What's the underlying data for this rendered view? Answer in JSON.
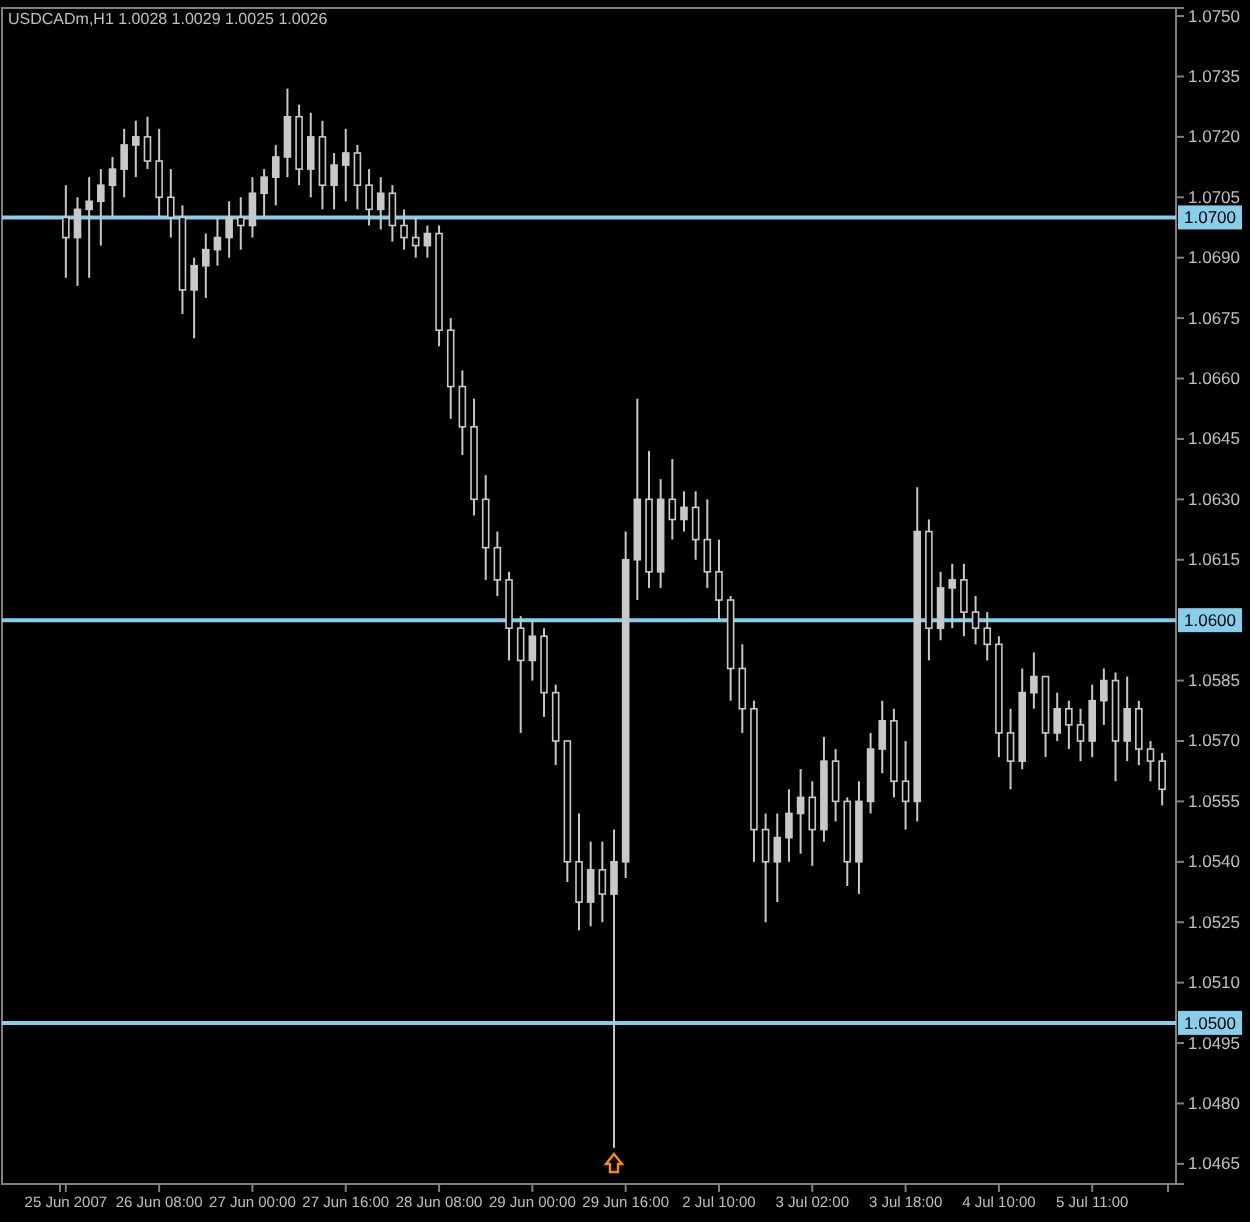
{
  "chart_data": {
    "type": "candlestick",
    "title": "USDCADm,H1  1.0028 1.0029 1.0025 1.0026",
    "categories": [
      "25 Jun 2007",
      null,
      null,
      null,
      null,
      null,
      null,
      null,
      "26 Jun 08:00",
      null,
      null,
      null,
      null,
      null,
      null,
      null,
      "27 Jun 00:00",
      null,
      null,
      null,
      null,
      null,
      null,
      null,
      "27 Jun 16:00",
      null,
      null,
      null,
      null,
      null,
      null,
      null,
      "28 Jun 08:00",
      null,
      null,
      null,
      null,
      null,
      null,
      null,
      "29 Jun 00:00",
      null,
      null,
      null,
      null,
      null,
      null,
      null,
      "29 Jun 16:00",
      null,
      null,
      null,
      null,
      null,
      null,
      null,
      "2 Jul 10:00",
      null,
      null,
      null,
      null,
      null,
      null,
      null,
      "3 Jul 02:00",
      null,
      null,
      null,
      null,
      null,
      null,
      null,
      "3 Jul 18:00",
      null,
      null,
      null,
      null,
      null,
      null,
      null,
      "4 Jul 10:00",
      null,
      null,
      null,
      null,
      null,
      null,
      null,
      "5 Jul 11:00",
      null,
      null,
      null,
      null,
      null,
      null
    ],
    "ohlc": [
      [
        1.07,
        1.0708,
        1.0685,
        1.0695
      ],
      [
        1.0695,
        1.0705,
        1.0683,
        1.0702
      ],
      [
        1.0702,
        1.071,
        1.0685,
        1.0704
      ],
      [
        1.0704,
        1.0712,
        1.0693,
        1.0708
      ],
      [
        1.0708,
        1.0715,
        1.07,
        1.0712
      ],
      [
        1.0712,
        1.0722,
        1.0705,
        1.0718
      ],
      [
        1.0718,
        1.0724,
        1.071,
        1.072
      ],
      [
        1.072,
        1.0725,
        1.0712,
        1.0714
      ],
      [
        1.0714,
        1.0722,
        1.07,
        1.0705
      ],
      [
        1.0705,
        1.0712,
        1.0695,
        1.07
      ],
      [
        1.07,
        1.0703,
        1.0676,
        1.0682
      ],
      [
        1.0682,
        1.069,
        1.067,
        1.0688
      ],
      [
        1.0688,
        1.0696,
        1.068,
        1.0692
      ],
      [
        1.0692,
        1.07,
        1.0688,
        1.0695
      ],
      [
        1.0695,
        1.0704,
        1.069,
        1.07
      ],
      [
        1.07,
        1.0705,
        1.0692,
        1.0698
      ],
      [
        1.0698,
        1.071,
        1.0695,
        1.0706
      ],
      [
        1.0706,
        1.0712,
        1.07,
        1.071
      ],
      [
        1.071,
        1.0718,
        1.0703,
        1.0715
      ],
      [
        1.0715,
        1.0732,
        1.071,
        1.0725
      ],
      [
        1.0725,
        1.0728,
        1.0708,
        1.0712
      ],
      [
        1.0712,
        1.0726,
        1.0705,
        1.072
      ],
      [
        1.072,
        1.0724,
        1.0702,
        1.0708
      ],
      [
        1.0708,
        1.0716,
        1.0702,
        1.0713
      ],
      [
        1.0713,
        1.0722,
        1.0704,
        1.0716
      ],
      [
        1.0716,
        1.0718,
        1.0702,
        1.0708
      ],
      [
        1.0708,
        1.0712,
        1.0698,
        1.0702
      ],
      [
        1.0702,
        1.071,
        1.0697,
        1.0706
      ],
      [
        1.0706,
        1.0708,
        1.0694,
        1.0698
      ],
      [
        1.0698,
        1.0702,
        1.0692,
        1.0695
      ],
      [
        1.0695,
        1.07,
        1.069,
        1.0693
      ],
      [
        1.0693,
        1.0698,
        1.069,
        1.0696
      ],
      [
        1.0696,
        1.0698,
        1.0668,
        1.0672
      ],
      [
        1.0672,
        1.0675,
        1.065,
        1.0658
      ],
      [
        1.0658,
        1.0662,
        1.0641,
        1.0648
      ],
      [
        1.0648,
        1.0655,
        1.0626,
        1.063
      ],
      [
        1.063,
        1.0636,
        1.061,
        1.0618
      ],
      [
        1.0618,
        1.0622,
        1.0606,
        1.061
      ],
      [
        1.061,
        1.0612,
        1.059,
        1.0598
      ],
      [
        1.0598,
        1.0601,
        1.0572,
        1.059
      ],
      [
        1.059,
        1.06,
        1.0585,
        1.0596
      ],
      [
        1.0596,
        1.0598,
        1.0576,
        1.0582
      ],
      [
        1.0582,
        1.0584,
        1.0564,
        1.057
      ],
      [
        1.057,
        1.057,
        1.0535,
        1.054
      ],
      [
        1.054,
        1.0552,
        1.0523,
        1.053
      ],
      [
        1.053,
        1.0545,
        1.0524,
        1.0538
      ],
      [
        1.0538,
        1.0545,
        1.0525,
        1.0532
      ],
      [
        1.0532,
        1.0548,
        1.0469,
        1.054
      ],
      [
        1.054,
        1.0622,
        1.0536,
        1.0615
      ],
      [
        1.0615,
        1.0655,
        1.0605,
        1.063
      ],
      [
        1.063,
        1.0642,
        1.0608,
        1.0612
      ],
      [
        1.0612,
        1.0635,
        1.0608,
        1.063
      ],
      [
        1.063,
        1.064,
        1.062,
        1.0625
      ],
      [
        1.0625,
        1.0632,
        1.0622,
        1.0628
      ],
      [
        1.0628,
        1.0632,
        1.0615,
        1.062
      ],
      [
        1.062,
        1.063,
        1.0608,
        1.0612
      ],
      [
        1.0612,
        1.062,
        1.06,
        1.0605
      ],
      [
        1.0605,
        1.0606,
        1.058,
        1.0588
      ],
      [
        1.0588,
        1.0594,
        1.0572,
        1.0578
      ],
      [
        1.0578,
        1.058,
        1.054,
        1.0548
      ],
      [
        1.0548,
        1.0552,
        1.0525,
        1.054
      ],
      [
        1.054,
        1.0552,
        1.053,
        1.0546
      ],
      [
        1.0546,
        1.0558,
        1.054,
        1.0552
      ],
      [
        1.0552,
        1.0563,
        1.0542,
        1.0556
      ],
      [
        1.0556,
        1.056,
        1.0539,
        1.0548
      ],
      [
        1.0548,
        1.0571,
        1.0545,
        1.0565
      ],
      [
        1.0565,
        1.0568,
        1.055,
        1.0555
      ],
      [
        1.0555,
        1.0556,
        1.0534,
        1.054
      ],
      [
        1.054,
        1.056,
        1.0532,
        1.0555
      ],
      [
        1.0555,
        1.0572,
        1.0552,
        1.0568
      ],
      [
        1.0568,
        1.058,
        1.0562,
        1.0575
      ],
      [
        1.0575,
        1.0578,
        1.0556,
        1.056
      ],
      [
        1.056,
        1.057,
        1.0548,
        1.0555
      ],
      [
        1.0555,
        1.0633,
        1.055,
        1.0622
      ],
      [
        1.0622,
        1.0625,
        1.059,
        1.0598
      ],
      [
        1.0598,
        1.0612,
        1.0595,
        1.0608
      ],
      [
        1.0608,
        1.0614,
        1.0598,
        1.061
      ],
      [
        1.061,
        1.0614,
        1.0596,
        1.0602
      ],
      [
        1.0602,
        1.0606,
        1.0594,
        1.0598
      ],
      [
        1.0598,
        1.0602,
        1.059,
        1.0594
      ],
      [
        1.0594,
        1.0596,
        1.0566,
        1.0572
      ],
      [
        1.0572,
        1.0578,
        1.0558,
        1.0565
      ],
      [
        1.0565,
        1.0588,
        1.0563,
        1.0582
      ],
      [
        1.0582,
        1.0592,
        1.0578,
        1.0586
      ],
      [
        1.0586,
        1.0586,
        1.0566,
        1.0572
      ],
      [
        1.0572,
        1.0582,
        1.057,
        1.0578
      ],
      [
        1.0578,
        1.058,
        1.0568,
        1.0574
      ],
      [
        1.0574,
        1.0578,
        1.0565,
        1.057
      ],
      [
        1.057,
        1.0584,
        1.0566,
        1.058
      ],
      [
        1.058,
        1.0588,
        1.0574,
        1.0585
      ],
      [
        1.0585,
        1.0587,
        1.056,
        1.057
      ],
      [
        1.057,
        1.0586,
        1.0565,
        1.0578
      ],
      [
        1.0578,
        1.058,
        1.0564,
        1.0568
      ],
      [
        1.0568,
        1.057,
        1.056,
        1.0565
      ],
      [
        1.0565,
        1.0567,
        1.0554,
        1.0558
      ]
    ],
    "color": "#c8c8c8",
    "ylim": [
      1.046,
      1.0752
    ],
    "yticks": [
      1.0465,
      {
        "value": 1.048,
        "label": "1.0480"
      },
      1.0495,
      {
        "value": 1.051,
        "label": "1.0510"
      },
      1.0525,
      {
        "value": 1.054,
        "label": "1.0540"
      },
      1.0555,
      {
        "value": 1.057,
        "label": "1.0570"
      },
      1.0585,
      1.0615,
      {
        "value": 1.063,
        "label": "1.0630"
      },
      1.0645,
      {
        "value": 1.066,
        "label": "1.0660"
      },
      1.0675,
      {
        "value": 1.069,
        "label": "1.0690"
      },
      1.0705,
      {
        "value": 1.072,
        "label": "1.0720"
      },
      1.0735,
      {
        "value": 1.075,
        "label": "1.0750"
      }
    ],
    "ref_lines": [
      {
        "axis": "y",
        "value": 1.07,
        "label": "1.0700",
        "color": "#87ceeb"
      },
      {
        "axis": "y",
        "value": 1.06,
        "label": "1.0600",
        "color": "#87ceeb"
      },
      {
        "axis": "y",
        "value": 1.05,
        "label": "1.0500",
        "color": "#87ceeb"
      }
    ],
    "grid": false
  }
}
